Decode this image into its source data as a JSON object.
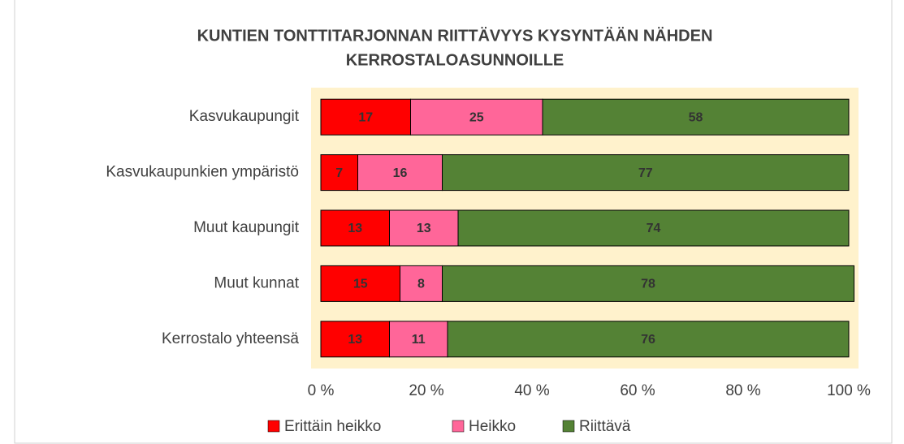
{
  "chart_data": {
    "type": "stacked_bar_horizontal",
    "title": [
      "KUNTIEN TONTTITARJONNAN  RIITTÄVYYS KYSYNTÄÄN NÄHDEN",
      "KERROSTALOASUNNOILLE"
    ],
    "categories": [
      "Kasvukaupungit",
      "Kasvukaupunkien ympäristö",
      "Muut kaupungit",
      "Muut kunnat",
      "Kerrostalo yhteensä"
    ],
    "series": [
      {
        "name": "Erittäin heikko",
        "color": "#ff0000",
        "values": [
          17,
          7,
          13,
          15,
          13
        ]
      },
      {
        "name": "Heikko",
        "color": "#ff6699",
        "values": [
          25,
          16,
          13,
          8,
          11
        ]
      },
      {
        "name": "Riittävä",
        "color": "#548235",
        "values": [
          58,
          77,
          74,
          78,
          76
        ]
      }
    ],
    "xlim": [
      0,
      100
    ],
    "xticks": [
      {
        "value": 0,
        "label": "0 %"
      },
      {
        "value": 20,
        "label": "20 %"
      },
      {
        "value": 40,
        "label": "40 %"
      },
      {
        "value": 60,
        "label": "60 %"
      },
      {
        "value": 80,
        "label": "80 %"
      },
      {
        "value": 100,
        "label": "100 %"
      }
    ],
    "legend": "bottom",
    "plot_background": "#fff2cc"
  }
}
